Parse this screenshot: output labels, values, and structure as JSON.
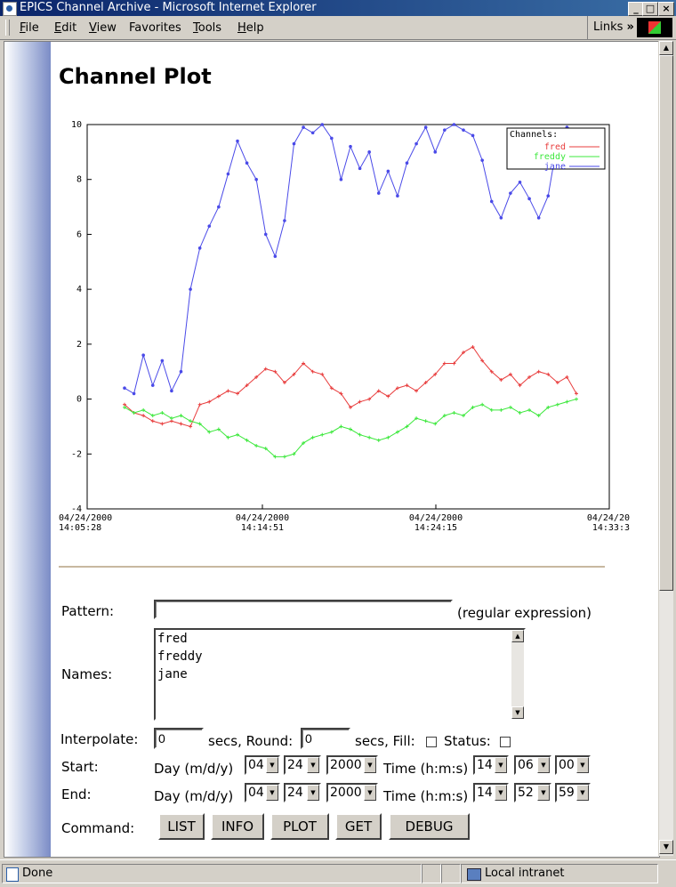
{
  "window": {
    "title": "EPICS Channel Archive - Microsoft Internet Explorer",
    "minimize": "_",
    "maximize": "□",
    "close": "×"
  },
  "menu": {
    "items": [
      {
        "u": "F",
        "rest": "ile"
      },
      {
        "u": "E",
        "rest": "dit"
      },
      {
        "u": "V",
        "rest": "iew"
      },
      {
        "u": "",
        "rest": "Favorites"
      },
      {
        "u": "T",
        "rest": "ools"
      },
      {
        "u": "H",
        "rest": "elp"
      }
    ],
    "links": "Links",
    "links_more": "»"
  },
  "page": {
    "title": "Channel Plot"
  },
  "chart_data": {
    "type": "line",
    "ylim": [
      -4,
      10
    ],
    "yticks": [
      -4,
      -2,
      0,
      2,
      4,
      6,
      8,
      10
    ],
    "x_ticks": [
      {
        "date": "04/24/2000",
        "time": "14:05:28"
      },
      {
        "date": "04/24/2000",
        "time": "14:14:51"
      },
      {
        "date": "04/24/2000",
        "time": "14:24:15"
      },
      {
        "date": "04/24/20",
        "time": "14:33:3"
      }
    ],
    "legend_title": "Channels:",
    "legend_position": "top-right",
    "grid": true,
    "series": [
      {
        "name": "fred",
        "color": "#e83c3c",
        "marker": "plus",
        "x": [
          0,
          0.7,
          1.4,
          2.1,
          2.8,
          3.5,
          4.2,
          4.9,
          5.6,
          6.3,
          7,
          7.7,
          8.4,
          9.1,
          9.8,
          10.5,
          11.2,
          11.9,
          12.6,
          13.3,
          14,
          14.7,
          15.4,
          16.1,
          16.8,
          17.5,
          18.2,
          18.9,
          19.6,
          20.3,
          21,
          21.7,
          22.4,
          23.1,
          23.8,
          24.5,
          25.2,
          25.9,
          26.6,
          27.3,
          28,
          28.7,
          29.4,
          30.1,
          30.8,
          31.5,
          32.2,
          32.9,
          33.6
        ],
        "y": [
          -0.2,
          -0.5,
          -0.6,
          -0.8,
          -0.9,
          -0.8,
          -0.9,
          -1.0,
          -0.2,
          -0.1,
          0.1,
          0.3,
          0.2,
          0.5,
          0.8,
          1.1,
          1.0,
          0.6,
          0.9,
          1.3,
          1.0,
          0.9,
          0.4,
          0.2,
          -0.3,
          -0.1,
          0.0,
          0.3,
          0.1,
          0.4,
          0.5,
          0.3,
          0.6,
          0.9,
          1.3,
          1.3,
          1.7,
          1.9,
          1.4,
          1.0,
          0.7,
          0.9,
          0.5,
          0.8,
          1.0,
          0.9,
          0.6,
          0.8,
          0.2
        ]
      },
      {
        "name": "freddy",
        "color": "#3ce83c",
        "marker": "plus",
        "x": [
          0,
          0.7,
          1.4,
          2.1,
          2.8,
          3.5,
          4.2,
          4.9,
          5.6,
          6.3,
          7,
          7.7,
          8.4,
          9.1,
          9.8,
          10.5,
          11.2,
          11.9,
          12.6,
          13.3,
          14,
          14.7,
          15.4,
          16.1,
          16.8,
          17.5,
          18.2,
          18.9,
          19.6,
          20.3,
          21,
          21.7,
          22.4,
          23.1,
          23.8,
          24.5,
          25.2,
          25.9,
          26.6,
          27.3,
          28,
          28.7,
          29.4,
          30.1,
          30.8,
          31.5,
          32.2,
          32.9,
          33.6
        ],
        "y": [
          -0.3,
          -0.5,
          -0.4,
          -0.6,
          -0.5,
          -0.7,
          -0.6,
          -0.8,
          -0.9,
          -1.2,
          -1.1,
          -1.4,
          -1.3,
          -1.5,
          -1.7,
          -1.8,
          -2.1,
          -2.1,
          -2.0,
          -1.6,
          -1.4,
          -1.3,
          -1.2,
          -1.0,
          -1.1,
          -1.3,
          -1.4,
          -1.5,
          -1.4,
          -1.2,
          -1.0,
          -0.7,
          -0.8,
          -0.9,
          -0.6,
          -0.5,
          -0.6,
          -0.3,
          -0.2,
          -0.4,
          -0.4,
          -0.3,
          -0.5,
          -0.4,
          -0.6,
          -0.3,
          -0.2,
          -0.1,
          0.0
        ]
      },
      {
        "name": "jane",
        "color": "#4a4ae8",
        "marker": "dot",
        "x": [
          0,
          0.7,
          1.4,
          2.1,
          2.8,
          3.5,
          4.2,
          4.9,
          5.6,
          6.3,
          7,
          7.7,
          8.4,
          9.1,
          9.8,
          10.5,
          11.2,
          11.9,
          12.6,
          13.3,
          14,
          14.7,
          15.4,
          16.1,
          16.8,
          17.5,
          18.2,
          18.9,
          19.6,
          20.3,
          21,
          21.7,
          22.4,
          23.1,
          23.8,
          24.5,
          25.2,
          25.9,
          26.6,
          27.3,
          28,
          28.7,
          29.4,
          30.1,
          30.8,
          31.5,
          32.2,
          32.9,
          33.6
        ],
        "y": [
          0.4,
          0.2,
          1.6,
          0.5,
          1.4,
          0.3,
          1.0,
          4.0,
          5.5,
          6.3,
          7.0,
          8.2,
          9.4,
          8.6,
          8.0,
          6.0,
          5.2,
          6.5,
          9.3,
          9.9,
          9.7,
          10.0,
          9.5,
          8.0,
          9.2,
          8.4,
          9.0,
          7.5,
          8.3,
          7.4,
          8.6,
          9.3,
          9.9,
          9.0,
          9.8,
          10.0,
          9.8,
          9.6,
          8.7,
          7.2,
          6.6,
          7.5,
          7.9,
          7.3,
          6.6,
          7.4,
          9.4,
          9.9,
          9.8
        ]
      }
    ]
  },
  "form": {
    "pattern_label": "Pattern:",
    "pattern_value": "",
    "pattern_hint": "(regular expression)",
    "names_label": "Names:",
    "names": [
      "fred",
      "freddy",
      "jane"
    ],
    "interpolate_label": "Interpolate:",
    "interpolate_value": "0",
    "round_label": "secs, Round:",
    "round_value": "0",
    "fill_label": "secs, Fill:",
    "status_label": "Status:",
    "start_label": "Start:",
    "end_label": "End:",
    "day_label": "Day (m/d/y)",
    "time_label": "Time (h:m:s)",
    "start": {
      "m": "04",
      "d": "24",
      "y": "2000",
      "h": "14",
      "mi": "06",
      "s": "00"
    },
    "end": {
      "m": "04",
      "d": "24",
      "y": "2000",
      "h": "14",
      "mi": "52",
      "s": "59"
    },
    "command_label": "Command:",
    "buttons": [
      "LIST",
      "INFO",
      "PLOT",
      "GET",
      "DEBUG"
    ]
  },
  "status": {
    "text": "Done",
    "zone": "Local intranet"
  }
}
